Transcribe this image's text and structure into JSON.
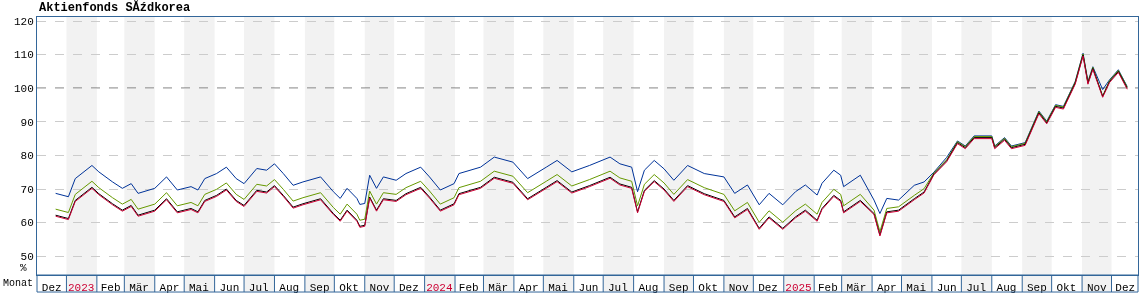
{
  "chart_data": {
    "type": "line",
    "title": "Aktienfonds SĂźdkorea",
    "xlabel": "Monat",
    "ylabel": "%",
    "x": [
      "2022-12-21",
      "2023-01-03",
      "2023-01-10",
      "2023-01-27",
      "2023-02-03",
      "2023-02-17",
      "2023-02-27",
      "2023-03-08",
      "2023-03-15",
      "2023-04-01",
      "2023-04-13",
      "2023-04-24",
      "2023-05-08",
      "2023-05-15",
      "2023-05-22",
      "2023-06-03",
      "2023-06-13",
      "2023-06-23",
      "2023-07-01",
      "2023-07-14",
      "2023-07-24",
      "2023-08-01",
      "2023-08-10",
      "2023-08-20",
      "2023-08-30",
      "2023-09-17",
      "2023-09-30",
      "2023-10-07",
      "2023-10-14",
      "2023-10-24",
      "2023-10-27",
      "2023-11-01",
      "2023-11-06",
      "2023-11-13",
      "2023-11-20",
      "2023-12-03",
      "2023-12-13",
      "2023-12-28",
      "2024-01-06",
      "2024-01-17",
      "2024-01-31",
      "2024-02-05",
      "2024-02-27",
      "2024-03-12",
      "2024-03-31",
      "2024-04-15",
      "2024-05-04",
      "2024-05-15",
      "2024-05-30",
      "2024-06-17",
      "2024-07-08",
      "2024-07-18",
      "2024-07-30",
      "2024-08-05",
      "2024-08-12",
      "2024-08-22",
      "2024-09-01",
      "2024-09-11",
      "2024-09-25",
      "2024-10-12",
      "2024-11-01",
      "2024-11-12",
      "2024-11-25",
      "2024-12-07",
      "2024-12-17",
      "2024-12-31",
      "2025-01-13",
      "2025-01-23",
      "2025-02-04",
      "2025-02-09",
      "2025-02-21",
      "2025-02-28",
      "2025-03-03",
      "2025-03-20",
      "2025-04-03",
      "2025-04-09",
      "2025-04-16",
      "2025-04-28",
      "2025-05-14",
      "2025-05-24",
      "2025-06-03",
      "2025-06-16",
      "2025-06-27",
      "2025-07-05",
      "2025-07-14",
      "2025-08-01",
      "2025-08-04",
      "2025-08-14",
      "2025-08-21",
      "2025-09-04",
      "2025-09-18",
      "2025-09-26",
      "2025-10-05",
      "2025-10-13",
      "2025-10-25",
      "2025-11-02",
      "2025-11-07",
      "2025-11-12",
      "2025-11-22",
      "2025-11-29",
      "2025-12-08",
      "2025-12-17"
    ],
    "series": [
      {
        "color": "#003399",
        "values": [
          68.7,
          67.7,
          73.1,
          77.0,
          75.1,
          72.1,
          70.2,
          71.6,
          68.7,
          70.2,
          73.6,
          69.7,
          70.7,
          69.7,
          73.1,
          74.6,
          76.5,
          73.1,
          71.6,
          76.1,
          75.6,
          77.5,
          74.6,
          71.1,
          72.1,
          73.6,
          69.2,
          67.2,
          70.2,
          67.2,
          65.4,
          65.7,
          74.1,
          70.2,
          73.6,
          72.6,
          74.6,
          76.5,
          73.6,
          69.7,
          71.6,
          74.6,
          76.5,
          79.5,
          78.0,
          73.1,
          76.5,
          78.5,
          75.1,
          77.0,
          79.5,
          77.5,
          76.5,
          69.2,
          75.6,
          78.5,
          76.0,
          72.6,
          77.0,
          74.6,
          73.6,
          68.7,
          71.2,
          65.3,
          68.7,
          65.3,
          69.2,
          71.2,
          68.2,
          71.7,
          75.6,
          74.1,
          70.7,
          74.1,
          66.7,
          62.7,
          67.2,
          66.7,
          71.1,
          72.1,
          75.0,
          79.4,
          84.3,
          82.8,
          85.8,
          85.8,
          82.8,
          85.3,
          82.8,
          83.8,
          93.2,
          90.2,
          95.1,
          94.6,
          102.0,
          110.4,
          102.0,
          106.4,
          99.6,
          102.5,
          105.5,
          100.5
        ]
      },
      {
        "color": "#669900",
        "values": [
          64.0,
          63.0,
          68.4,
          72.3,
          70.4,
          67.4,
          65.5,
          66.9,
          64.0,
          65.5,
          68.9,
          65.0,
          66.0,
          65.0,
          68.4,
          69.9,
          71.8,
          68.4,
          66.9,
          71.4,
          70.9,
          72.8,
          69.9,
          66.4,
          67.4,
          68.9,
          64.5,
          62.5,
          65.5,
          62.5,
          60.7,
          61.0,
          69.4,
          65.5,
          68.9,
          68.4,
          70.4,
          72.3,
          69.4,
          65.5,
          67.4,
          70.4,
          72.3,
          75.3,
          73.8,
          68.9,
          72.3,
          74.3,
          70.9,
          72.8,
          75.3,
          73.3,
          72.3,
          65.0,
          71.4,
          74.3,
          71.8,
          68.4,
          72.8,
          70.4,
          68.4,
          63.5,
          66.0,
          60.1,
          63.5,
          60.1,
          63.5,
          65.5,
          62.5,
          66.0,
          69.9,
          68.4,
          65.0,
          68.4,
          63.7,
          57.3,
          64.2,
          64.7,
          68.1,
          70.1,
          74.8,
          78.7,
          84.1,
          82.6,
          85.6,
          85.6,
          82.6,
          85.1,
          82.6,
          83.6,
          93.0,
          90.0,
          94.9,
          94.4,
          101.8,
          110.2,
          101.8,
          106.2,
          97.6,
          102.3,
          105.3,
          100.3
        ]
      },
      {
        "color": "#000000",
        "values": [
          62.2,
          61.2,
          66.6,
          70.5,
          68.6,
          65.6,
          63.7,
          65.1,
          62.2,
          63.7,
          67.1,
          63.2,
          64.2,
          63.2,
          66.6,
          68.1,
          70.0,
          66.6,
          65.1,
          69.6,
          69.1,
          71.0,
          68.1,
          64.6,
          65.6,
          67.1,
          62.7,
          60.7,
          63.7,
          60.7,
          58.9,
          59.2,
          67.6,
          63.7,
          67.1,
          66.6,
          68.6,
          70.5,
          67.6,
          63.7,
          65.6,
          68.6,
          70.5,
          73.5,
          72.0,
          67.1,
          70.5,
          72.5,
          69.1,
          71.0,
          73.5,
          71.5,
          70.5,
          63.2,
          69.6,
          72.5,
          70.0,
          66.6,
          71.0,
          68.6,
          66.6,
          61.7,
          64.2,
          58.3,
          61.7,
          58.3,
          61.7,
          63.7,
          60.7,
          64.2,
          68.1,
          66.6,
          63.2,
          66.6,
          62.7,
          56.3,
          63.2,
          63.7,
          67.1,
          69.1,
          74.5,
          78.4,
          83.8,
          82.3,
          85.3,
          85.3,
          82.3,
          84.8,
          82.3,
          83.3,
          92.7,
          89.7,
          94.6,
          94.1,
          101.5,
          109.9,
          101.5,
          105.9,
          97.6,
          102.0,
          105.0,
          100.0
        ]
      },
      {
        "color": "#cc0033",
        "values": [
          61.9,
          60.9,
          66.3,
          70.2,
          68.3,
          65.3,
          63.4,
          64.8,
          61.9,
          63.4,
          66.8,
          62.9,
          63.9,
          62.9,
          66.3,
          67.8,
          69.7,
          66.3,
          64.8,
          69.3,
          68.8,
          70.7,
          67.8,
          64.3,
          65.3,
          66.8,
          62.4,
          60.4,
          63.4,
          60.4,
          58.6,
          58.9,
          67.3,
          63.4,
          66.8,
          66.3,
          68.3,
          70.2,
          67.3,
          63.4,
          65.3,
          68.3,
          70.2,
          73.2,
          71.7,
          66.8,
          70.2,
          72.2,
          68.8,
          70.7,
          73.2,
          71.2,
          70.2,
          62.9,
          69.3,
          72.2,
          69.7,
          66.3,
          70.7,
          68.3,
          66.3,
          61.4,
          63.9,
          58.0,
          61.4,
          58.0,
          61.4,
          63.4,
          60.4,
          63.9,
          67.8,
          66.3,
          62.9,
          66.3,
          62.4,
          56.0,
          62.9,
          63.4,
          66.8,
          68.8,
          74.2,
          78.1,
          83.5,
          82.0,
          85.0,
          85.0,
          82.0,
          84.5,
          82.0,
          83.0,
          92.4,
          89.4,
          94.3,
          93.8,
          101.2,
          109.6,
          101.2,
          105.6,
          97.3,
          101.7,
          104.7,
          99.7
        ]
      }
    ],
    "xlim": [
      "2022-12-02",
      "2025-12-28"
    ],
    "xticks": [
      {
        "value": "2022-12-17",
        "label": "Dez"
      },
      {
        "value": "2023-01-16",
        "label": "2023"
      },
      {
        "value": "2023-02-15",
        "label": "Feb"
      },
      {
        "value": "2023-03-16",
        "label": "Mär"
      },
      {
        "value": "2023-04-16",
        "label": "Apr"
      },
      {
        "value": "2023-05-16",
        "label": "Mai"
      },
      {
        "value": "2023-06-16",
        "label": "Jun"
      },
      {
        "value": "2023-07-16",
        "label": "Jul"
      },
      {
        "value": "2023-08-16",
        "label": "Aug"
      },
      {
        "value": "2023-09-16",
        "label": "Sep"
      },
      {
        "value": "2023-10-16",
        "label": "Okt"
      },
      {
        "value": "2023-11-16",
        "label": "Nov"
      },
      {
        "value": "2023-12-16",
        "label": "Dez"
      },
      {
        "value": "2024-01-16",
        "label": "2024"
      },
      {
        "value": "2024-02-15",
        "label": "Feb"
      },
      {
        "value": "2024-03-16",
        "label": "Mär"
      },
      {
        "value": "2024-04-16",
        "label": "Apr"
      },
      {
        "value": "2024-05-16",
        "label": "Mai"
      },
      {
        "value": "2024-06-16",
        "label": "Jun"
      },
      {
        "value": "2024-07-16",
        "label": "Jul"
      },
      {
        "value": "2024-08-16",
        "label": "Aug"
      },
      {
        "value": "2024-09-16",
        "label": "Sep"
      },
      {
        "value": "2024-10-16",
        "label": "Okt"
      },
      {
        "value": "2024-11-16",
        "label": "Nov"
      },
      {
        "value": "2024-12-16",
        "label": "Dez"
      },
      {
        "value": "2025-01-16",
        "label": "2025"
      },
      {
        "value": "2025-02-15",
        "label": "Feb"
      },
      {
        "value": "2025-03-16",
        "label": "Mär"
      },
      {
        "value": "2025-04-16",
        "label": "Apr"
      },
      {
        "value": "2025-05-16",
        "label": "Mai"
      },
      {
        "value": "2025-06-16",
        "label": "Jun"
      },
      {
        "value": "2025-07-16",
        "label": "Jul"
      },
      {
        "value": "2025-08-16",
        "label": "Aug"
      },
      {
        "value": "2025-09-16",
        "label": "Sep"
      },
      {
        "value": "2025-10-16",
        "label": "Okt"
      },
      {
        "value": "2025-11-16",
        "label": "Nov"
      },
      {
        "value": "2025-12-15",
        "label": "Dez"
      }
    ],
    "ylim": [
      44.4,
      121.2
    ],
    "yticks": [
      50,
      60,
      70,
      80,
      90,
      100,
      110,
      120
    ],
    "grid": "y",
    "line_style": "solid",
    "marker": "none",
    "ref_lines": [
      {
        "axis": "y",
        "value": 100,
        "color": "#000000",
        "line_style": "dashed"
      }
    ],
    "bands": [
      {
        "axis": "x",
        "from": "2023-01-01",
        "to": "2023-02-01",
        "color": "#f2f2f2"
      },
      {
        "axis": "x",
        "from": "2023-03-01",
        "to": "2023-04-01",
        "color": "#f2f2f2"
      },
      {
        "axis": "x",
        "from": "2023-05-01",
        "to": "2023-06-01",
        "color": "#f2f2f2"
      },
      {
        "axis": "x",
        "from": "2023-07-01",
        "to": "2023-08-01",
        "color": "#f2f2f2"
      },
      {
        "axis": "x",
        "from": "2023-09-01",
        "to": "2023-10-01",
        "color": "#f2f2f2"
      },
      {
        "axis": "x",
        "from": "2023-11-01",
        "to": "2023-12-01",
        "color": "#f2f2f2"
      },
      {
        "axis": "x",
        "from": "2024-01-01",
        "to": "2024-02-01",
        "color": "#f2f2f2"
      },
      {
        "axis": "x",
        "from": "2024-03-01",
        "to": "2024-04-01",
        "color": "#f2f2f2"
      },
      {
        "axis": "x",
        "from": "2024-05-01",
        "to": "2024-06-01",
        "color": "#f2f2f2"
      },
      {
        "axis": "x",
        "from": "2024-07-01",
        "to": "2024-08-01",
        "color": "#f2f2f2"
      },
      {
        "axis": "x",
        "from": "2024-09-01",
        "to": "2024-10-01",
        "color": "#f2f2f2"
      },
      {
        "axis": "x",
        "from": "2024-11-01",
        "to": "2024-12-01",
        "color": "#f2f2f2"
      },
      {
        "axis": "x",
        "from": "2025-01-01",
        "to": "2025-02-01",
        "color": "#f2f2f2"
      },
      {
        "axis": "x",
        "from": "2025-03-01",
        "to": "2025-04-01",
        "color": "#f2f2f2"
      },
      {
        "axis": "x",
        "from": "2025-05-01",
        "to": "2025-06-01",
        "color": "#f2f2f2"
      },
      {
        "axis": "x",
        "from": "2025-07-01",
        "to": "2025-08-01",
        "color": "#f2f2f2"
      },
      {
        "axis": "x",
        "from": "2025-09-01",
        "to": "2025-10-01",
        "color": "#f2f2f2"
      },
      {
        "axis": "x",
        "from": "2025-11-01",
        "to": "2025-12-01",
        "color": "#f2f2f2"
      }
    ]
  }
}
